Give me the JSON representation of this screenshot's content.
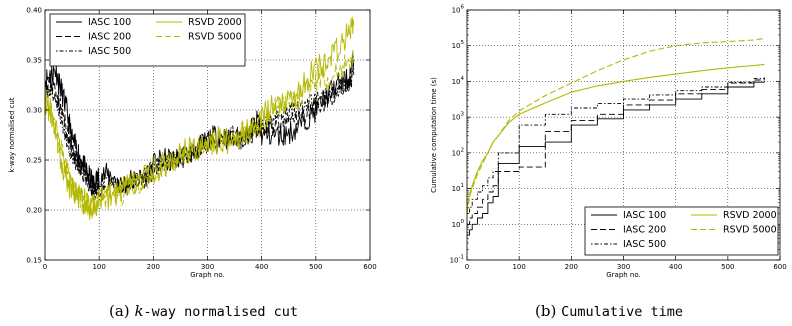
{
  "colors": {
    "iasc": "#000000",
    "rsvd": "#b5b800"
  },
  "chart_data": [
    {
      "type": "line",
      "caption": {
        "label": "(a)",
        "k": "k",
        "text": "-way normalised cut"
      },
      "xlabel": "Graph no.",
      "ylabel": "k-way normalised cut",
      "xlim": [
        0,
        600
      ],
      "ylim": [
        0.15,
        0.4
      ],
      "xticks": [
        0,
        100,
        200,
        300,
        400,
        500,
        600
      ],
      "yticks": [
        0.15,
        0.2,
        0.25,
        0.3,
        0.35,
        0.4
      ],
      "ytick_labels": [
        "0.15",
        "0.20",
        "0.25",
        "0.30",
        "0.35",
        "0.40"
      ],
      "yscale": "linear",
      "grid": true,
      "legend": {
        "position": "top-left",
        "columns": 2
      },
      "series": [
        {
          "name": "IASC 100",
          "style": "solid",
          "color": "#000000",
          "seed": 11,
          "noise": 0.012,
          "x": [
            0,
            10,
            20,
            30,
            40,
            50,
            60,
            70,
            80,
            90,
            100,
            120,
            140,
            160,
            180,
            200,
            220,
            240,
            260,
            280,
            300,
            320,
            340,
            360,
            380,
            395,
            400,
            420,
            440,
            460,
            480,
            500,
            520,
            540,
            560,
            570
          ],
          "y": [
            0.33,
            0.335,
            0.34,
            0.32,
            0.3,
            0.27,
            0.26,
            0.245,
            0.235,
            0.225,
            0.235,
            0.235,
            0.225,
            0.23,
            0.23,
            0.245,
            0.25,
            0.25,
            0.255,
            0.26,
            0.27,
            0.275,
            0.27,
            0.27,
            0.28,
            0.29,
            0.275,
            0.275,
            0.275,
            0.28,
            0.29,
            0.3,
            0.315,
            0.325,
            0.33,
            0.35
          ]
        },
        {
          "name": "IASC 200",
          "style": "dashed",
          "color": "#000000",
          "seed": 23,
          "noise": 0.01,
          "x": [
            0,
            10,
            20,
            30,
            40,
            50,
            60,
            70,
            80,
            90,
            100,
            120,
            140,
            160,
            180,
            200,
            220,
            240,
            260,
            280,
            300,
            320,
            340,
            360,
            380,
            395,
            400,
            420,
            440,
            460,
            480,
            500,
            520,
            540,
            560,
            570
          ],
          "y": [
            0.32,
            0.33,
            0.32,
            0.3,
            0.28,
            0.26,
            0.25,
            0.24,
            0.23,
            0.215,
            0.22,
            0.225,
            0.22,
            0.225,
            0.23,
            0.24,
            0.245,
            0.25,
            0.255,
            0.26,
            0.265,
            0.27,
            0.27,
            0.27,
            0.275,
            0.285,
            0.28,
            0.285,
            0.285,
            0.29,
            0.295,
            0.305,
            0.31,
            0.32,
            0.325,
            0.34
          ]
        },
        {
          "name": "IASC 500",
          "style": "dashdot",
          "color": "#000000",
          "seed": 37,
          "noise": 0.009,
          "x": [
            0,
            10,
            20,
            30,
            40,
            50,
            60,
            70,
            80,
            90,
            100,
            120,
            140,
            160,
            180,
            200,
            220,
            240,
            260,
            280,
            300,
            320,
            340,
            360,
            380,
            395,
            400,
            420,
            440,
            460,
            480,
            500,
            520,
            540,
            560,
            570
          ],
          "y": [
            0.32,
            0.32,
            0.31,
            0.29,
            0.27,
            0.255,
            0.245,
            0.235,
            0.225,
            0.22,
            0.225,
            0.23,
            0.225,
            0.23,
            0.235,
            0.24,
            0.245,
            0.25,
            0.255,
            0.26,
            0.265,
            0.27,
            0.275,
            0.275,
            0.28,
            0.285,
            0.285,
            0.29,
            0.295,
            0.3,
            0.305,
            0.31,
            0.315,
            0.32,
            0.325,
            0.335
          ]
        },
        {
          "name": "RSVD 2000",
          "style": "solid",
          "color": "#b5b800",
          "seed": 53,
          "noise": 0.014,
          "x": [
            0,
            10,
            20,
            30,
            40,
            50,
            60,
            70,
            80,
            90,
            100,
            120,
            140,
            160,
            180,
            200,
            220,
            240,
            260,
            280,
            300,
            320,
            340,
            360,
            380,
            400,
            420,
            440,
            460,
            480,
            500,
            520,
            540,
            560,
            570
          ],
          "y": [
            0.31,
            0.3,
            0.28,
            0.25,
            0.23,
            0.22,
            0.215,
            0.21,
            0.205,
            0.2,
            0.21,
            0.215,
            0.22,
            0.225,
            0.23,
            0.24,
            0.245,
            0.25,
            0.26,
            0.26,
            0.265,
            0.27,
            0.27,
            0.275,
            0.28,
            0.29,
            0.305,
            0.31,
            0.31,
            0.33,
            0.34,
            0.35,
            0.36,
            0.375,
            0.385
          ]
        },
        {
          "name": "RSVD 5000",
          "style": "dashed",
          "color": "#b5b800",
          "seed": 71,
          "noise": 0.012,
          "x": [
            0,
            10,
            20,
            30,
            40,
            50,
            60,
            70,
            80,
            90,
            100,
            120,
            140,
            160,
            180,
            200,
            220,
            240,
            260,
            280,
            300,
            320,
            340,
            360,
            380,
            400,
            420,
            440,
            460,
            480,
            500,
            520,
            540,
            560,
            570
          ],
          "y": [
            0.31,
            0.3,
            0.28,
            0.26,
            0.24,
            0.225,
            0.215,
            0.21,
            0.205,
            0.205,
            0.21,
            0.215,
            0.215,
            0.225,
            0.23,
            0.235,
            0.245,
            0.25,
            0.255,
            0.26,
            0.265,
            0.27,
            0.27,
            0.275,
            0.28,
            0.285,
            0.3,
            0.31,
            0.31,
            0.32,
            0.33,
            0.33,
            0.34,
            0.345,
            0.35
          ]
        }
      ]
    },
    {
      "type": "line",
      "caption": {
        "label": "(b)",
        "text": "Cumulative time"
      },
      "xlabel": "Graph no.",
      "ylabel": "Cumulative computation time (s)",
      "xlim": [
        0,
        600
      ],
      "ylim": [
        0.1,
        1000000
      ],
      "xticks": [
        0,
        100,
        200,
        300,
        400,
        500,
        600
      ],
      "yticks": [
        0.1,
        1,
        10,
        100,
        1000,
        10000,
        100000,
        1000000
      ],
      "ytick_labels": [
        "10^-1",
        "10^0",
        "10^1",
        "10^2",
        "10^3",
        "10^4",
        "10^5",
        "10^6"
      ],
      "yscale": "log",
      "grid": true,
      "legend": {
        "position": "bottom-right",
        "columns": 2
      },
      "series": [
        {
          "name": "IASC 100",
          "style": "solid",
          "color": "#000000",
          "interp": "step",
          "x": [
            0,
            5,
            10,
            20,
            30,
            40,
            50,
            60,
            100,
            150,
            200,
            250,
            300,
            350,
            400,
            450,
            500,
            550,
            570
          ],
          "y": [
            0.5,
            0.7,
            1,
            1.5,
            2,
            4,
            6,
            50,
            150,
            200,
            600,
            900,
            1600,
            2200,
            3200,
            4500,
            7000,
            9500,
            10000
          ]
        },
        {
          "name": "IASC 200",
          "style": "dashed",
          "color": "#000000",
          "interp": "step",
          "x": [
            0,
            5,
            10,
            20,
            30,
            40,
            50,
            60,
            100,
            150,
            200,
            250,
            300,
            350,
            400,
            450,
            500,
            550,
            570
          ],
          "y": [
            1,
            1.5,
            2,
            3,
            5,
            8,
            12,
            30,
            40,
            400,
            800,
            1200,
            2200,
            3000,
            4500,
            6000,
            9000,
            11000,
            12000
          ]
        },
        {
          "name": "IASC 500",
          "style": "dashdot",
          "color": "#000000",
          "interp": "step",
          "x": [
            0,
            5,
            10,
            20,
            30,
            40,
            50,
            60,
            100,
            150,
            200,
            250,
            300,
            350,
            400,
            450,
            500,
            550,
            570
          ],
          "y": [
            2,
            3,
            5,
            8,
            12,
            20,
            30,
            100,
            600,
            1200,
            1800,
            2400,
            3200,
            4200,
            5500,
            7000,
            9500,
            12000,
            13000
          ]
        },
        {
          "name": "RSVD 2000",
          "style": "solid",
          "color": "#b5b800",
          "interp": "smooth",
          "x": [
            0,
            5,
            10,
            20,
            30,
            40,
            50,
            60,
            80,
            100,
            150,
            200,
            250,
            300,
            350,
            400,
            450,
            500,
            550,
            570
          ],
          "y": [
            3,
            7,
            12,
            30,
            60,
            100,
            200,
            300,
            700,
            1200,
            2500,
            5000,
            7500,
            10000,
            13000,
            16000,
            20000,
            24000,
            28000,
            30000
          ]
        },
        {
          "name": "RSVD 5000",
          "style": "dashed",
          "color": "#b5b800",
          "interp": "smooth",
          "x": [
            0,
            5,
            10,
            20,
            30,
            40,
            50,
            60,
            80,
            100,
            150,
            200,
            250,
            300,
            350,
            400,
            450,
            500,
            550,
            570
          ],
          "y": [
            2,
            6,
            10,
            25,
            50,
            100,
            200,
            300,
            800,
            1500,
            4000,
            9000,
            20000,
            40000,
            70000,
            100000,
            120000,
            130000,
            145000,
            160000
          ]
        }
      ]
    }
  ]
}
